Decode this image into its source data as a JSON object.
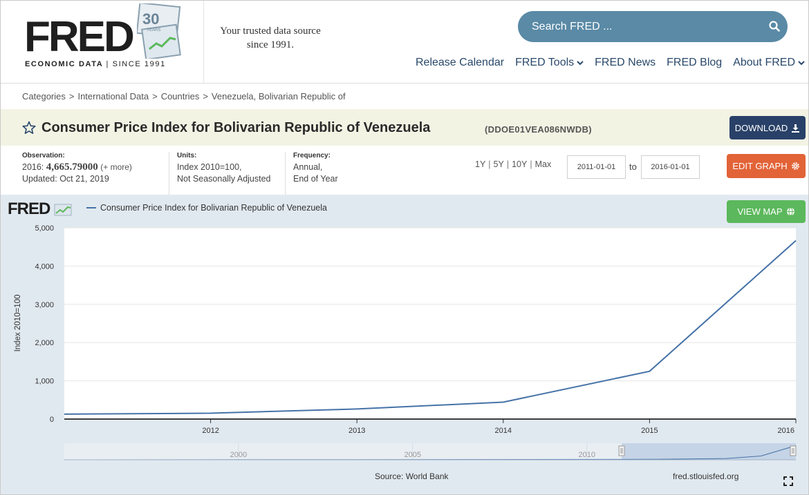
{
  "header": {
    "logo_word": "FRED",
    "logo_sub_left": "ECONOMIC DATA",
    "logo_sub_right": "SINCE 1991",
    "badge_number": "30",
    "badge_text": "YEARS",
    "tagline_1": "Your trusted data source",
    "tagline_2": "since 1991.",
    "search_placeholder": "Search FRED ...",
    "nav": [
      {
        "label": "Release Calendar",
        "dropdown": false
      },
      {
        "label": "FRED Tools",
        "dropdown": true
      },
      {
        "label": "FRED News",
        "dropdown": false
      },
      {
        "label": "FRED Blog",
        "dropdown": false
      },
      {
        "label": "About FRED",
        "dropdown": true
      }
    ]
  },
  "breadcrumb": [
    "Categories",
    "International Data",
    "Countries",
    "Venezuela, Bolivarian Republic of"
  ],
  "series": {
    "title": "Consumer Price Index for Bolivarian Republic of Venezuela",
    "id": "(DDOE01VEA086NWDB)",
    "download_label": "DOWNLOAD",
    "edit_label": "EDIT GRAPH",
    "viewmap_label": "VIEW MAP"
  },
  "meta": {
    "observation_label": "Observation:",
    "observation_period": "2016:",
    "observation_value": "4,665.79000",
    "observation_more": "(+ more)",
    "updated": "Updated: Oct 21, 2019",
    "units_label": "Units:",
    "units_1": "Index 2010=100,",
    "units_2": "Not Seasonally Adjusted",
    "frequency_label": "Frequency:",
    "frequency_1": "Annual,",
    "frequency_2": "End of Year"
  },
  "range": {
    "buttons": [
      "1Y",
      "5Y",
      "10Y",
      "Max"
    ],
    "from": "2011-01-01",
    "to_label": "to",
    "to": "2016-01-01"
  },
  "graph": {
    "brand": "FRED",
    "source": "Source: World Bank",
    "site": "fred.stlouisfed.org"
  },
  "colors": {
    "series": "#4572a7",
    "download": "#294168",
    "edit": "#e26338",
    "viewmap": "#5cb85c",
    "search": "#5a8aa6"
  },
  "chart_data": {
    "type": "line",
    "ylabel": "Index 2010=100",
    "ylim": [
      0,
      5000
    ],
    "yticks": [
      0,
      1000,
      2000,
      3000,
      4000,
      5000
    ],
    "ytick_labels": [
      "0",
      "1,000",
      "2,000",
      "3,000",
      "4,000",
      "5,000"
    ],
    "xlim": [
      2011,
      2016
    ],
    "xticks": [
      2012,
      2013,
      2014,
      2015,
      2016
    ],
    "series": [
      {
        "name": "Consumer Price Index for Bolivarian Republic of Venezuela",
        "x": [
          2011,
          2012,
          2013,
          2014,
          2015,
          2016
        ],
        "y": [
          127.6,
          153.9,
          263.1,
          441.8,
          1250.0,
          4665.79
        ]
      }
    ],
    "navigator": {
      "xticks": [
        2000,
        2005,
        2010
      ],
      "xlim": [
        1995,
        2016
      ],
      "selected": [
        2011,
        2016
      ]
    },
    "grid": true
  }
}
